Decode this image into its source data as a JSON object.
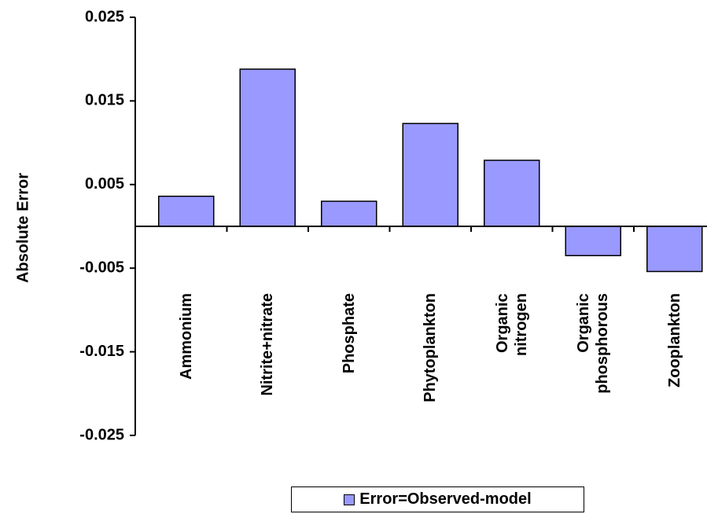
{
  "chart_data": {
    "type": "bar",
    "y_axis_label": "Absolute Error",
    "categories": [
      "Ammonium",
      "Nitrite+nitrate",
      "Phosphate",
      "Phytoplankton",
      "Organic\nnitrogen",
      "Organic\nphosphorous",
      "Zooplankton"
    ],
    "series": [
      {
        "name": "Error=Observed-model",
        "color": "#9999ff",
        "values": [
          0.0036,
          0.0188,
          0.003,
          0.0123,
          0.0079,
          -0.0035,
          -0.0054
        ]
      }
    ],
    "ylim": [
      -0.025,
      0.025
    ],
    "yticks": [
      -0.025,
      -0.015,
      -0.005,
      0.005,
      0.015,
      0.025
    ],
    "legend": "bottom"
  }
}
